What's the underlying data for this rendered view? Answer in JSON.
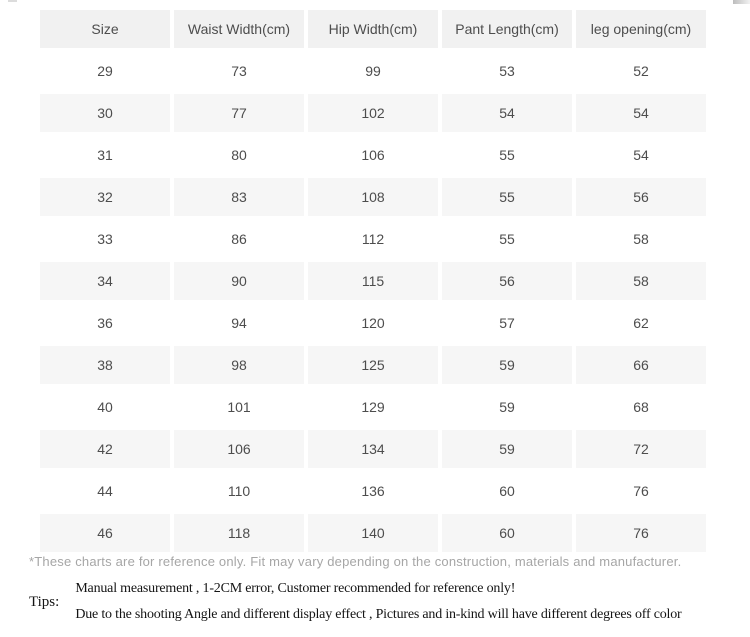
{
  "chart_data": {
    "type": "table",
    "title": "",
    "columns": [
      "Size",
      "Waist Width(cm)",
      "Hip Width(cm)",
      "Pant Length(cm)",
      "leg opening(cm)"
    ],
    "rows": [
      [
        "29",
        "73",
        "99",
        "53",
        "52"
      ],
      [
        "30",
        "77",
        "102",
        "54",
        "54"
      ],
      [
        "31",
        "80",
        "106",
        "55",
        "54"
      ],
      [
        "32",
        "83",
        "108",
        "55",
        "56"
      ],
      [
        "33",
        "86",
        "112",
        "55",
        "58"
      ],
      [
        "34",
        "90",
        "115",
        "56",
        "58"
      ],
      [
        "36",
        "94",
        "120",
        "57",
        "62"
      ],
      [
        "38",
        "98",
        "125",
        "59",
        "66"
      ],
      [
        "40",
        "101",
        "129",
        "59",
        "68"
      ],
      [
        "42",
        "106",
        "134",
        "59",
        "72"
      ],
      [
        "44",
        "110",
        "136",
        "60",
        "76"
      ],
      [
        "46",
        "118",
        "140",
        "60",
        "76"
      ]
    ],
    "layout_hints": {
      "striped": true,
      "stripe_pattern": "header gray, data rows alternate white/gray starting white",
      "cell_alignment": "center"
    }
  },
  "footer": {
    "disclaimer": "*These charts are for reference only. Fit may vary depending on the construction, materials and manufacturer.",
    "tips_label": "Tips:",
    "tips_lines": [
      "Manual measurement , 1-2CM error, Customer recommended for reference only!",
      "Due to the shooting Angle and different display effect , Pictures and in-kind will have different degrees off color"
    ]
  },
  "colors": {
    "header_bg": "#f1f1f1",
    "stripe_bg": "#f6f6f6",
    "table_text": "#4d4d4d",
    "disclaimer_text": "#a6a6a6",
    "tips_text": "#141414",
    "page_bg": "#ffffff"
  }
}
